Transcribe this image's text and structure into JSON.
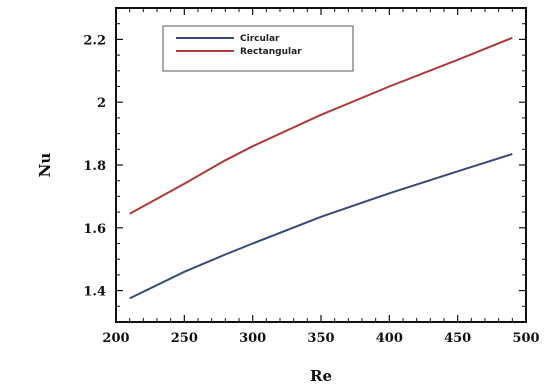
{
  "chart_data": {
    "type": "line",
    "xlabel": "Re",
    "ylabel": "Nu",
    "xlim": [
      200,
      500
    ],
    "ylim": [
      1.3,
      2.3
    ],
    "xticks": [
      200,
      250,
      300,
      350,
      400,
      450,
      500
    ],
    "yticks": [
      1.4,
      1.6,
      1.8,
      2,
      2.2
    ],
    "ytick_labels": [
      "1.4",
      "1.6",
      "1.8",
      "2",
      "2.2"
    ],
    "legend_position": "top-left",
    "grid": false,
    "series": [
      {
        "name": "Circular",
        "color": "#3a4a78",
        "x": [
          210,
          250,
          280,
          300,
          350,
          400,
          450,
          490
        ],
        "y": [
          1.375,
          1.46,
          1.515,
          1.55,
          1.635,
          1.71,
          1.78,
          1.835
        ]
      },
      {
        "name": "Rectangular",
        "color": "#b03a3a",
        "x": [
          210,
          250,
          280,
          300,
          350,
          400,
          450,
          490
        ],
        "y": [
          1.645,
          1.74,
          1.815,
          1.86,
          1.96,
          2.05,
          2.135,
          2.205
        ]
      }
    ]
  }
}
